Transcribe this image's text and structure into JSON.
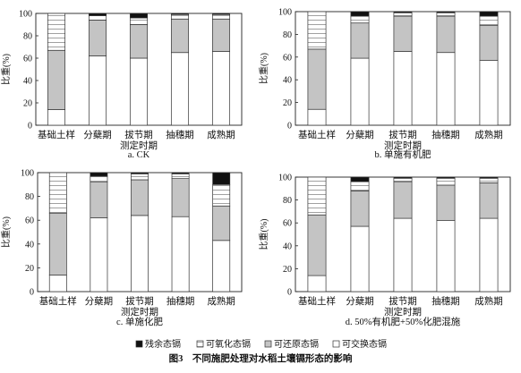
{
  "figure": {
    "caption": "图3　不同施肥处理对水稻土壤镉形态的影响",
    "legend": [
      "残余态镉",
      "可氧化态镉",
      "可还原态镉",
      "可交换态镉"
    ]
  },
  "chart_data": [
    {
      "type": "bar",
      "stacked": true,
      "caption": "a. CK",
      "xlabel": "测定时期",
      "ylabel": "比重(%)",
      "ylim": [
        0,
        100
      ],
      "yticks": [
        0,
        20,
        40,
        60,
        80,
        100
      ],
      "categories": [
        "基础土样",
        "分蘖期",
        "拔节期",
        "抽穗期",
        "成熟期"
      ],
      "series": [
        {
          "name": "可交换态镉",
          "values": [
            14,
            62,
            60,
            65,
            66
          ]
        },
        {
          "name": "可还原态镉",
          "values": [
            53,
            32,
            30,
            30,
            29
          ]
        },
        {
          "name": "可氧化态镉",
          "values": [
            33,
            4,
            6,
            4,
            4
          ]
        },
        {
          "name": "残余态镉",
          "values": [
            0,
            2,
            4,
            1,
            1
          ]
        }
      ]
    },
    {
      "type": "bar",
      "stacked": true,
      "caption": "b. 单施有机肥",
      "xlabel": "测定时期",
      "ylabel": "比重(%)",
      "ylim": [
        0,
        100
      ],
      "yticks": [
        0,
        20,
        40,
        60,
        80,
        100
      ],
      "categories": [
        "基础土样",
        "分蘖期",
        "拔节期",
        "抽穗期",
        "成熟期"
      ],
      "series": [
        {
          "name": "可交换态镉",
          "values": [
            14,
            59,
            65,
            64,
            57
          ]
        },
        {
          "name": "可还原态镉",
          "values": [
            53,
            31,
            31,
            32,
            31
          ]
        },
        {
          "name": "可氧化态镉",
          "values": [
            33,
            6,
            3,
            3,
            8
          ]
        },
        {
          "name": "残余态镉",
          "values": [
            0,
            4,
            1,
            1,
            4
          ]
        }
      ]
    },
    {
      "type": "bar",
      "stacked": true,
      "caption": "c. 单施化肥",
      "xlabel": "测定时期",
      "ylabel": "比重(%)",
      "ylim": [
        0,
        100
      ],
      "yticks": [
        0,
        20,
        40,
        60,
        80,
        100
      ],
      "categories": [
        "基础土样",
        "分蘖期",
        "拔节期",
        "抽穗期",
        "成熟期"
      ],
      "series": [
        {
          "name": "可交换态镉",
          "values": [
            14,
            62,
            64,
            63,
            43
          ]
        },
        {
          "name": "可还原态镉",
          "values": [
            52,
            30,
            30,
            32,
            29
          ]
        },
        {
          "name": "可氧化态镉",
          "values": [
            34,
            5,
            5,
            4,
            18
          ]
        },
        {
          "name": "残余态镉",
          "values": [
            0,
            3,
            1,
            1,
            10
          ]
        }
      ]
    },
    {
      "type": "bar",
      "stacked": true,
      "caption": "d. 50%有机肥+50%化肥混施",
      "xlabel": "测定时期",
      "ylabel": "比重(%)",
      "ylim": [
        0,
        100
      ],
      "yticks": [
        0,
        20,
        40,
        60,
        80,
        100
      ],
      "categories": [
        "基础土样",
        "分蘖期",
        "拔节期",
        "抽穗期",
        "成熟期"
      ],
      "series": [
        {
          "name": "可交换态镉",
          "values": [
            14,
            57,
            64,
            62,
            64
          ]
        },
        {
          "name": "可还原态镉",
          "values": [
            53,
            31,
            32,
            31,
            31
          ]
        },
        {
          "name": "可氧化态镉",
          "values": [
            33,
            8,
            3,
            6,
            4
          ]
        },
        {
          "name": "残余态镉",
          "values": [
            0,
            4,
            1,
            1,
            1
          ]
        }
      ]
    }
  ]
}
